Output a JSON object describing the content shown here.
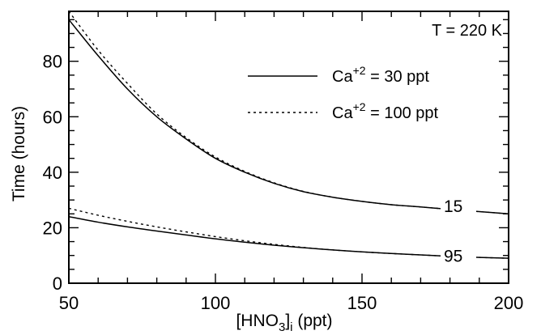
{
  "chart_data": {
    "type": "line",
    "title": "",
    "xlabel": {
      "main": "[HNO",
      "sub1": "3",
      "close": "]",
      "sub2": "i",
      "unit": " (ppt)"
    },
    "ylabel": "Time (hours)",
    "xlim": [
      50,
      200
    ],
    "ylim": [
      0,
      98
    ],
    "xticks_major": [
      50,
      100,
      150,
      200
    ],
    "xtick_labels": [
      "50",
      "100",
      "150",
      "200"
    ],
    "yticks_major": [
      0,
      20,
      40,
      60,
      80
    ],
    "ytick_labels": [
      "0",
      "20",
      "40",
      "60",
      "80"
    ],
    "minor_x_step": 10,
    "minor_y_step": 5,
    "grid": false,
    "annotation": "T = 220 K",
    "legend": {
      "placement": "top-right",
      "entries": [
        {
          "style": "solid",
          "base": "Ca",
          "sup": "+2",
          "rest": " = 30 ppt"
        },
        {
          "style": "dotted",
          "base": "Ca",
          "sup": "+2",
          "rest": " = 100 ppt"
        }
      ]
    },
    "curve_labels": [
      {
        "text": "15",
        "x": 179,
        "y": 28
      },
      {
        "text": "95",
        "x": 179,
        "y": 10
      }
    ],
    "series": [
      {
        "style": "solid",
        "group": "15",
        "x": [
          50,
          60,
          70,
          80,
          90,
          100,
          110,
          120,
          130,
          140,
          150,
          160,
          170,
          180,
          190,
          200
        ],
        "y": [
          95,
          82,
          70,
          60,
          52,
          45,
          40,
          36,
          33,
          31,
          29.5,
          28.3,
          27.5,
          26.6,
          25.8,
          25
        ]
      },
      {
        "style": "dotted",
        "group": "15",
        "x": [
          50,
          60,
          70,
          80,
          90,
          100,
          110,
          120,
          130,
          140,
          150,
          160,
          170,
          180,
          190,
          200
        ],
        "y": [
          98,
          84,
          72,
          61,
          52.5,
          45.5,
          40.3,
          36.2,
          33.1,
          31,
          29.5,
          28.3,
          27.5,
          26.6,
          25.8,
          25
        ]
      },
      {
        "style": "solid",
        "group": "95",
        "x": [
          50,
          60,
          70,
          80,
          90,
          100,
          110,
          120,
          130,
          140,
          150,
          160,
          170,
          180,
          190,
          200
        ],
        "y": [
          24,
          22,
          20.3,
          18.8,
          17.4,
          16,
          14.8,
          13.7,
          12.8,
          12,
          11.3,
          10.7,
          10.2,
          9.7,
          9.3,
          9
        ]
      },
      {
        "style": "dotted",
        "group": "95",
        "x": [
          50,
          60,
          70,
          80,
          90,
          100,
          110,
          120,
          130,
          140,
          150,
          160,
          170,
          180,
          190,
          200
        ],
        "y": [
          27,
          24.5,
          22.3,
          20.3,
          18.5,
          16.8,
          15.3,
          14,
          12.9,
          12,
          11.3,
          10.7,
          10.2,
          9.7,
          9.3,
          9
        ]
      }
    ]
  }
}
